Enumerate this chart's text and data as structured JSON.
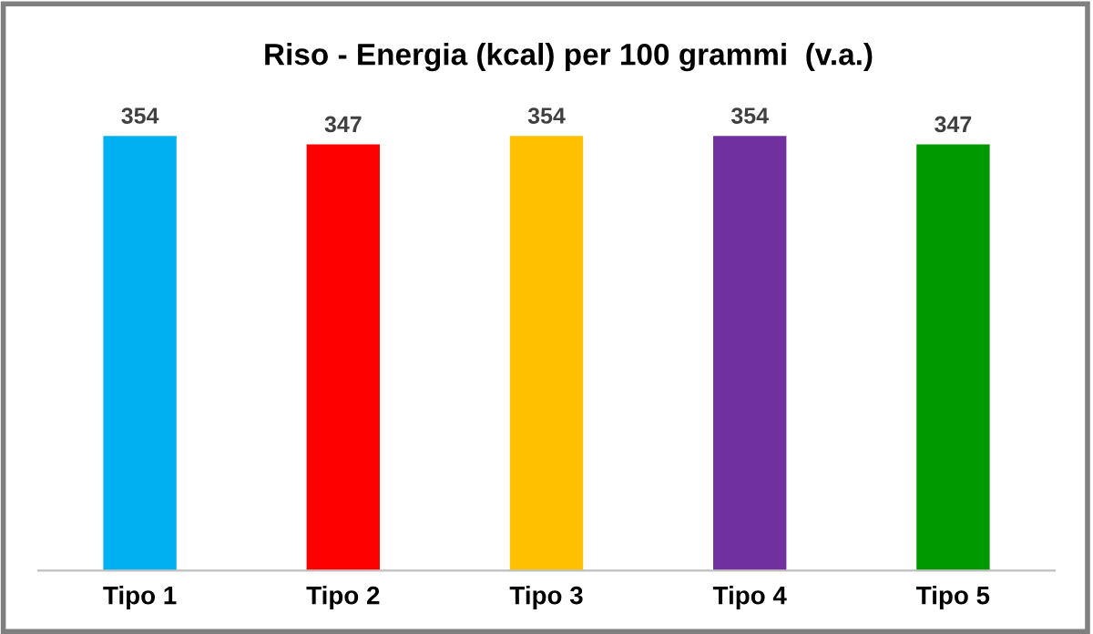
{
  "chart_data": {
    "type": "bar",
    "title": "Riso - Energia (kcal) per 100 grammi  (v.a.)",
    "categories": [
      "Tipo 1",
      "Tipo 2",
      "Tipo 3",
      "Tipo 4",
      "Tipo 5"
    ],
    "values": [
      354,
      347,
      354,
      354,
      347
    ],
    "colors": [
      "#00b0f0",
      "#ff0000",
      "#ffc000",
      "#7030a0",
      "#009a00"
    ],
    "data_labels": true,
    "tick_labels": "x",
    "grid": false,
    "legend": false
  }
}
